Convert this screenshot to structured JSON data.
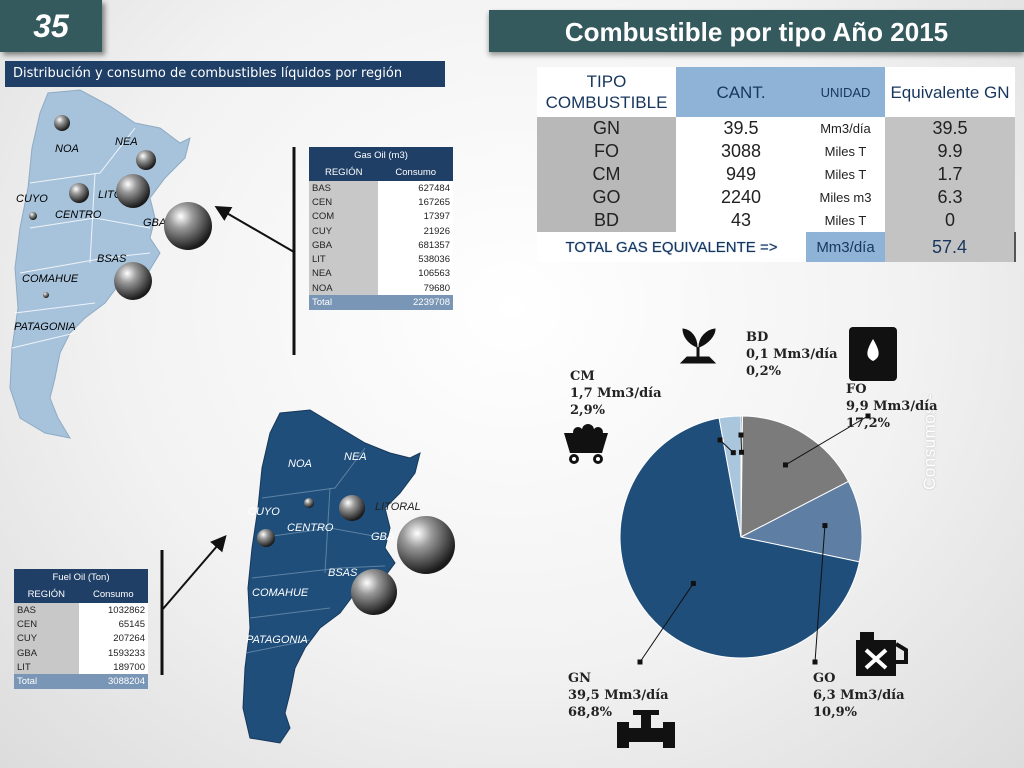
{
  "slide_number": "35",
  "title": "Combustible por tipo Año 2015",
  "subtitle": "Distribución y consumo de combustibles líquidos por región",
  "watermark": "Consumos - ",
  "summary_table": {
    "headers": [
      "TIPO COMBUSTIBLE",
      "CANT.",
      "UNIDAD",
      "Equivalente GN"
    ],
    "rows": [
      {
        "tipo": "GN",
        "cant": "39.5",
        "unidad": "Mm3/día",
        "equiv": "39.5"
      },
      {
        "tipo": "FO",
        "cant": "3088",
        "unidad": "Miles T",
        "equiv": "9.9"
      },
      {
        "tipo": "CM",
        "cant": "949",
        "unidad": "Miles T",
        "equiv": "1.7"
      },
      {
        "tipo": "GO",
        "cant": "2240",
        "unidad": "Miles m3",
        "equiv": "6.3"
      },
      {
        "tipo": "BD",
        "cant": "43",
        "unidad": "Miles T",
        "equiv": "0"
      }
    ],
    "total_label": "TOTAL GAS EQUIVALENTE =>",
    "total_unit": "Mm3/día",
    "total_value": "57.4"
  },
  "gas_oil_table": {
    "title": "Gas Oil (m3)",
    "col1": "REGIÓN",
    "col2": "Consumo",
    "rows": [
      {
        "region": "BAS",
        "value": "627484"
      },
      {
        "region": "CEN",
        "value": "167265"
      },
      {
        "region": "COM",
        "value": "17397"
      },
      {
        "region": "CUY",
        "value": "21926"
      },
      {
        "region": "GBA",
        "value": "681357"
      },
      {
        "region": "LIT",
        "value": "538036"
      },
      {
        "region": "NEA",
        "value": "106563"
      },
      {
        "region": "NOA",
        "value": "79680"
      }
    ],
    "total_label": "Total",
    "total_value": "2239708"
  },
  "fuel_oil_table": {
    "title": "Fuel Oil (Ton)",
    "col1": "REGIÓN",
    "col2": "Consumo",
    "rows": [
      {
        "region": "BAS",
        "value": "1032862"
      },
      {
        "region": "CEN",
        "value": "65145"
      },
      {
        "region": "CUY",
        "value": "207264"
      },
      {
        "region": "GBA",
        "value": "1593233"
      },
      {
        "region": "LIT",
        "value": "189700"
      }
    ],
    "total_label": "Total",
    "total_value": "3088204"
  },
  "map_top": {
    "fill_color": "#a7c3dc",
    "labels": [
      "NOA",
      "NEA",
      "CUYO",
      "LITORAL",
      "CENTRO",
      "GBA",
      "BSAS",
      "COMAHUE",
      "PATAGONIA"
    ]
  },
  "map_bottom": {
    "fill_color": "#1f4e7a",
    "labels": [
      "NOA",
      "NEA",
      "CUYO",
      "LITORAL",
      "CENTRO",
      "GBA",
      "BSAS",
      "COMAHUE",
      "PATAGONIA"
    ]
  },
  "chart_data": {
    "type": "pie",
    "slices": [
      {
        "name": "BD",
        "value": 0.1,
        "percent": 0.2,
        "color": "#5a6f82",
        "line1": "BD",
        "line2": "0,1 Mm3/día",
        "line3": "0,2%",
        "icon": "plant-icon"
      },
      {
        "name": "FO",
        "value": 9.9,
        "percent": 17.2,
        "color": "#7b7b7b",
        "line1": "FO",
        "line2": "9,9 Mm3/día",
        "line3": "17,2%",
        "icon": "oil-barrel-icon"
      },
      {
        "name": "GO",
        "value": 6.3,
        "percent": 10.9,
        "color": "#5e7ea3",
        "line1": "GO",
        "line2": "6,3 Mm3/día",
        "line3": "10,9%",
        "icon": "fuel-can-icon"
      },
      {
        "name": "GN",
        "value": 39.5,
        "percent": 68.8,
        "color": "#1f4e7a",
        "line1": "GN",
        "line2": "39,5 Mm3/día",
        "line3": "68,8%",
        "icon": "gas-pipe-icon"
      },
      {
        "name": "CM",
        "value": 1.7,
        "percent": 2.9,
        "color": "#a9c6dc",
        "line1": "CM",
        "line2": "1,7 Mm3/día",
        "line3": "2,9%",
        "icon": "coal-cart-icon"
      }
    ]
  }
}
